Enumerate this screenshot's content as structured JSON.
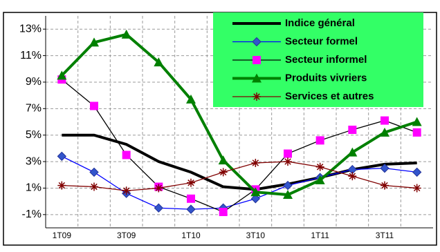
{
  "chart_data": {
    "type": "line",
    "categories": [
      "1T09",
      null,
      "3T09",
      null,
      "1T10",
      null,
      "3T10",
      null,
      "1T11",
      null,
      "3T11",
      null
    ],
    "series": [
      {
        "name": "Indice général",
        "color": "#000000",
        "marker": "none",
        "values": [
          5,
          5,
          4.3,
          3,
          2.2,
          1.1,
          0.9,
          1.3,
          1.8,
          2.4,
          2.8,
          2.9
        ]
      },
      {
        "name": "Secteur formel",
        "color": "#0000ff",
        "marker": "diamond",
        "marker_color": "#3355cc",
        "values": [
          3.4,
          2.2,
          0.6,
          -0.5,
          -0.6,
          -0.5,
          0.2,
          1.2,
          1.8,
          2.4,
          2.5,
          2.2
        ]
      },
      {
        "name": "Secteur informel",
        "color": "#000000",
        "marker": "square",
        "marker_color": "#ff00ff",
        "values": [
          9.2,
          7.2,
          3.5,
          1.1,
          0.2,
          -0.8,
          0.9,
          3.6,
          4.6,
          5.4,
          6.1,
          5.2
        ]
      },
      {
        "name": "Produits vivriers",
        "color": "#008000",
        "marker": "triangle",
        "marker_color": "#008000",
        "values": [
          9.5,
          12,
          12.6,
          10.5,
          7.7,
          3.1,
          0.7,
          0.5,
          1.6,
          3.7,
          5.2,
          6
        ]
      },
      {
        "name": "Services et autres",
        "color": "#800000",
        "marker": "star",
        "marker_color": "#800000",
        "values": [
          1.2,
          1.1,
          0.8,
          1.0,
          1.4,
          2.2,
          2.9,
          3.0,
          2.6,
          1.9,
          1.2,
          1.0
        ]
      }
    ],
    "ylim": [
      -2,
      14
    ],
    "yticks": [
      {
        "value": -1,
        "label": "-1%"
      },
      {
        "value": 1,
        "label": "1%"
      },
      {
        "value": 3,
        "label": "3%"
      },
      {
        "value": 5,
        "label": "5%"
      },
      {
        "value": 7,
        "label": "7%"
      },
      {
        "value": 9,
        "label": "9%"
      },
      {
        "value": 11,
        "label": "11%"
      },
      {
        "value": 13,
        "label": "13%"
      }
    ],
    "grid": true,
    "legend": "upper right",
    "legend_background": "#33ff66"
  }
}
